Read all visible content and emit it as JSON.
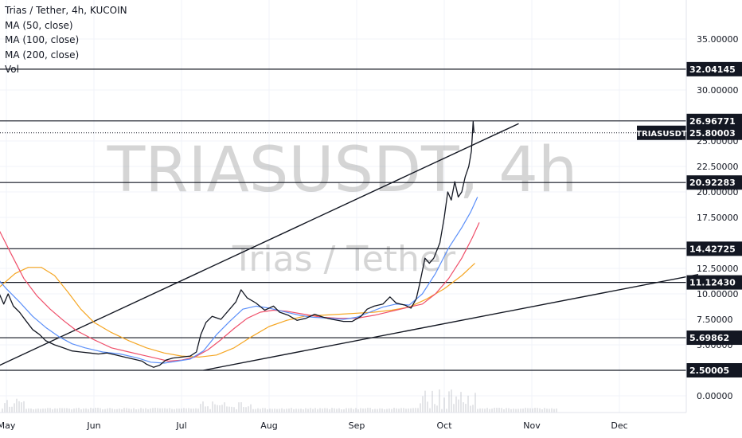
{
  "header": {
    "title": "Trias / Tether, 4h, KUCOIN",
    "indicators": [
      "MA (50, close)",
      "MA (100, close)",
      "MA (200, close)",
      "Vol"
    ]
  },
  "watermark": {
    "symbol": "TRIASUSDT, 4h",
    "description": "Trias / Tether"
  },
  "chart_data": {
    "type": "line",
    "symbol": "TRIASUSDT",
    "last_price_label": "25.80003",
    "ylim": [
      -0.5,
      36
    ],
    "y_ticks": [
      "35.00000",
      "30.00000",
      "25.00000",
      "22.50000",
      "20.00000",
      "17.50000",
      "12.50000",
      "10.00000",
      "7.50000",
      "5.00000",
      "0.00000"
    ],
    "y_tick_values": [
      35,
      30,
      25,
      22.5,
      20,
      17.5,
      12.5,
      10,
      7.5,
      5,
      0
    ],
    "x_ticks": [
      "May",
      "Jun",
      "Jul",
      "Aug",
      "Sep",
      "Oct",
      "Nov",
      "Dec"
    ],
    "horizontal_levels": [
      {
        "value": 32.04145,
        "label": "32.04145"
      },
      {
        "value": 26.96771,
        "label": "26.96771"
      },
      {
        "value": 20.92283,
        "label": "20.92283"
      },
      {
        "value": 14.42725,
        "label": "14.42725"
      },
      {
        "value": 11.1243,
        "label": "11.12430"
      },
      {
        "value": 5.69862,
        "label": "5.69862"
      },
      {
        "value": 2.50005,
        "label": "2.50005"
      }
    ],
    "trendlines": [
      {
        "from": [
          -0.2,
          2.5
        ],
        "to": [
          5.85,
          26.7
        ]
      },
      {
        "from": [
          2.25,
          2.5
        ],
        "to": [
          7.9,
          11.9
        ]
      }
    ],
    "series": [
      {
        "key": "price",
        "color": "#131722",
        "points": [
          [
            -1.1,
            7
          ],
          [
            -1.0,
            8.5
          ],
          [
            -0.95,
            6.6
          ],
          [
            -0.85,
            10.5
          ],
          [
            -0.8,
            12
          ],
          [
            -0.75,
            18.5
          ],
          [
            -0.72,
            27.5
          ],
          [
            -0.68,
            23
          ],
          [
            -0.63,
            27
          ],
          [
            -0.58,
            20
          ],
          [
            -0.55,
            25.5
          ],
          [
            -0.5,
            22
          ],
          [
            -0.45,
            19
          ],
          [
            -0.4,
            13.5
          ],
          [
            -0.35,
            11.5
          ],
          [
            -0.3,
            12.5
          ],
          [
            -0.25,
            9
          ],
          [
            -0.2,
            5.5
          ],
          [
            -0.15,
            8
          ],
          [
            -0.12,
            12.5
          ],
          [
            -0.08,
            10
          ],
          [
            -0.03,
            9
          ],
          [
            0.02,
            10
          ],
          [
            0.08,
            8.8
          ],
          [
            0.15,
            8.2
          ],
          [
            0.22,
            7.4
          ],
          [
            0.3,
            6.5
          ],
          [
            0.38,
            6
          ],
          [
            0.45,
            5.4
          ],
          [
            0.55,
            5
          ],
          [
            0.65,
            4.7
          ],
          [
            0.75,
            4.4
          ],
          [
            0.85,
            4.3
          ],
          [
            0.95,
            4.2
          ],
          [
            1.05,
            4.1
          ],
          [
            1.15,
            4.2
          ],
          [
            1.25,
            4
          ],
          [
            1.35,
            3.8
          ],
          [
            1.45,
            3.6
          ],
          [
            1.55,
            3.4
          ],
          [
            1.6,
            3.1
          ],
          [
            1.68,
            2.8
          ],
          [
            1.75,
            3
          ],
          [
            1.82,
            3.5
          ],
          [
            1.9,
            3.7
          ],
          [
            2.0,
            3.8
          ],
          [
            2.1,
            3.9
          ],
          [
            2.17,
            4.3
          ],
          [
            2.22,
            6
          ],
          [
            2.28,
            7.2
          ],
          [
            2.35,
            7.8
          ],
          [
            2.45,
            7.5
          ],
          [
            2.55,
            8.5
          ],
          [
            2.62,
            9.2
          ],
          [
            2.68,
            10.4
          ],
          [
            2.75,
            9.6
          ],
          [
            2.85,
            9.1
          ],
          [
            2.95,
            8.4
          ],
          [
            3.05,
            8.8
          ],
          [
            3.12,
            8.2
          ],
          [
            3.22,
            7.9
          ],
          [
            3.32,
            7.4
          ],
          [
            3.42,
            7.6
          ],
          [
            3.52,
            8
          ],
          [
            3.62,
            7.7
          ],
          [
            3.72,
            7.5
          ],
          [
            3.85,
            7.3
          ],
          [
            3.95,
            7.3
          ],
          [
            4.05,
            7.8
          ],
          [
            4.12,
            8.5
          ],
          [
            4.2,
            8.8
          ],
          [
            4.3,
            9
          ],
          [
            4.38,
            9.7
          ],
          [
            4.45,
            9.1
          ],
          [
            4.55,
            8.9
          ],
          [
            4.62,
            8.6
          ],
          [
            4.68,
            9.5
          ],
          [
            4.72,
            11
          ],
          [
            4.78,
            13.5
          ],
          [
            4.83,
            13
          ],
          [
            4.88,
            13.5
          ],
          [
            4.95,
            15
          ],
          [
            5.0,
            17.5
          ],
          [
            5.04,
            20
          ],
          [
            5.08,
            19.2
          ],
          [
            5.12,
            21
          ],
          [
            5.16,
            19.5
          ],
          [
            5.2,
            20
          ],
          [
            5.24,
            21.5
          ],
          [
            5.28,
            22.5
          ],
          [
            5.31,
            24
          ],
          [
            5.33,
            26.9
          ],
          [
            5.34,
            25.8
          ]
        ]
      },
      {
        "key": "ma50",
        "color": "#5b8ff9",
        "points": [
          [
            -1.1,
            4
          ],
          [
            -1.0,
            5.5
          ],
          [
            -0.9,
            8
          ],
          [
            -0.8,
            11.5
          ],
          [
            -0.7,
            16
          ],
          [
            -0.6,
            20
          ],
          [
            -0.5,
            21.5
          ],
          [
            -0.4,
            20
          ],
          [
            -0.3,
            17
          ],
          [
            -0.2,
            13.5
          ],
          [
            -0.1,
            11.5
          ],
          [
            0.0,
            10.5
          ],
          [
            0.15,
            9.2
          ],
          [
            0.3,
            7.8
          ],
          [
            0.45,
            6.7
          ],
          [
            0.6,
            5.8
          ],
          [
            0.75,
            5.1
          ],
          [
            0.9,
            4.7
          ],
          [
            1.1,
            4.3
          ],
          [
            1.3,
            4.1
          ],
          [
            1.5,
            3.7
          ],
          [
            1.65,
            3.3
          ],
          [
            1.8,
            3.2
          ],
          [
            1.95,
            3.4
          ],
          [
            2.1,
            3.6
          ],
          [
            2.25,
            4.4
          ],
          [
            2.4,
            6
          ],
          [
            2.55,
            7.3
          ],
          [
            2.7,
            8.5
          ],
          [
            2.85,
            8.8
          ],
          [
            3.0,
            8.6
          ],
          [
            3.15,
            8.3
          ],
          [
            3.35,
            7.9
          ],
          [
            3.5,
            7.7
          ],
          [
            3.7,
            7.6
          ],
          [
            3.85,
            7.5
          ],
          [
            4.0,
            7.7
          ],
          [
            4.15,
            8.2
          ],
          [
            4.3,
            8.7
          ],
          [
            4.45,
            9
          ],
          [
            4.6,
            8.9
          ],
          [
            4.75,
            10
          ],
          [
            4.9,
            12
          ],
          [
            5.05,
            14.5
          ],
          [
            5.2,
            16.5
          ],
          [
            5.3,
            18
          ],
          [
            5.38,
            19.5
          ]
        ]
      },
      {
        "key": "ma100",
        "color": "#ef4f6a",
        "points": [
          [
            -1.1,
            3
          ],
          [
            -0.95,
            4
          ],
          [
            -0.8,
            6.5
          ],
          [
            -0.65,
            10
          ],
          [
            -0.5,
            13.5
          ],
          [
            -0.35,
            16
          ],
          [
            -0.2,
            17
          ],
          [
            -0.08,
            16.2
          ],
          [
            0.05,
            14
          ],
          [
            0.2,
            11.5
          ],
          [
            0.35,
            9.8
          ],
          [
            0.5,
            8.5
          ],
          [
            0.65,
            7.4
          ],
          [
            0.8,
            6.4
          ],
          [
            1.0,
            5.5
          ],
          [
            1.2,
            4.7
          ],
          [
            1.4,
            4.3
          ],
          [
            1.55,
            4
          ],
          [
            1.7,
            3.7
          ],
          [
            1.85,
            3.4
          ],
          [
            2.0,
            3.5
          ],
          [
            2.15,
            3.8
          ],
          [
            2.3,
            4.5
          ],
          [
            2.45,
            5.5
          ],
          [
            2.6,
            6.6
          ],
          [
            2.75,
            7.6
          ],
          [
            2.9,
            8.2
          ],
          [
            3.05,
            8.4
          ],
          [
            3.2,
            8.3
          ],
          [
            3.4,
            8
          ],
          [
            3.6,
            7.7
          ],
          [
            3.8,
            7.6
          ],
          [
            4.0,
            7.6
          ],
          [
            4.2,
            7.9
          ],
          [
            4.4,
            8.3
          ],
          [
            4.6,
            8.7
          ],
          [
            4.75,
            9
          ],
          [
            4.9,
            10
          ],
          [
            5.05,
            11.5
          ],
          [
            5.2,
            13.5
          ],
          [
            5.32,
            15.5
          ],
          [
            5.4,
            17
          ]
        ]
      },
      {
        "key": "ma200",
        "color": "#f5a623",
        "points": [
          [
            -1.1,
            2.5
          ],
          [
            -0.9,
            3
          ],
          [
            -0.7,
            4.5
          ],
          [
            -0.5,
            6.5
          ],
          [
            -0.3,
            8.5
          ],
          [
            -0.1,
            10.5
          ],
          [
            0.1,
            12
          ],
          [
            0.25,
            12.6
          ],
          [
            0.4,
            12.6
          ],
          [
            0.55,
            11.8
          ],
          [
            0.7,
            10.2
          ],
          [
            0.85,
            8.5
          ],
          [
            1.0,
            7.2
          ],
          [
            1.2,
            6.2
          ],
          [
            1.4,
            5.4
          ],
          [
            1.6,
            4.7
          ],
          [
            1.8,
            4.2
          ],
          [
            2.0,
            3.9
          ],
          [
            2.2,
            3.8
          ],
          [
            2.4,
            4
          ],
          [
            2.6,
            4.7
          ],
          [
            2.8,
            5.8
          ],
          [
            3.0,
            6.8
          ],
          [
            3.2,
            7.4
          ],
          [
            3.4,
            7.8
          ],
          [
            3.6,
            7.9
          ],
          [
            3.8,
            8
          ],
          [
            4.0,
            8.1
          ],
          [
            4.2,
            8.2
          ],
          [
            4.4,
            8.4
          ],
          [
            4.6,
            8.7
          ],
          [
            4.8,
            9.5
          ],
          [
            5.0,
            10.5
          ],
          [
            5.2,
            11.8
          ],
          [
            5.35,
            13
          ]
        ]
      }
    ]
  },
  "colors": {
    "line": "#131722",
    "grid": "#f0f3fa",
    "watermark": "rgba(150,150,150,0.40)",
    "axis_text": "#131722"
  }
}
